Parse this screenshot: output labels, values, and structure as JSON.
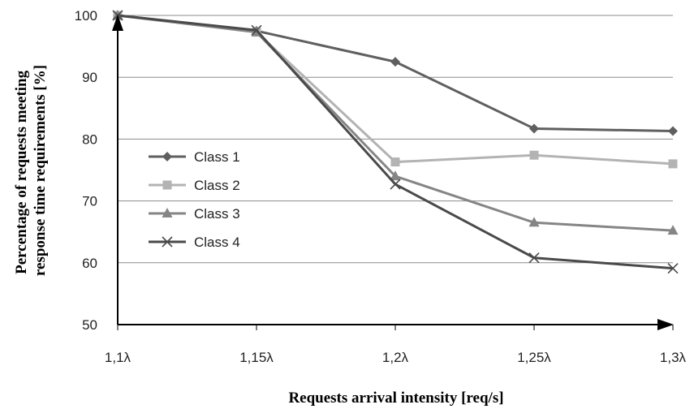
{
  "chart_data": {
    "type": "line",
    "categories": [
      "1,1λ",
      "1,15λ",
      "1,2λ",
      "1,25λ",
      "1,3λ"
    ],
    "series": [
      {
        "name": "Class 1",
        "values": [
          100,
          97.5,
          92.5,
          81.7,
          81.3
        ],
        "color": "#5f5f5f",
        "marker": "diamond"
      },
      {
        "name": "Class 2",
        "values": [
          100,
          97.3,
          76.3,
          77.4,
          76.0
        ],
        "color": "#b3b3b3",
        "marker": "square"
      },
      {
        "name": "Class 3",
        "values": [
          100,
          97.3,
          74.0,
          66.5,
          65.2
        ],
        "color": "#858585",
        "marker": "triangle"
      },
      {
        "name": "Class 4",
        "values": [
          100,
          97.6,
          72.7,
          60.8,
          59.1
        ],
        "color": "#4a4a4a",
        "marker": "x"
      }
    ],
    "xlabel": "Requests arrival intensity [req/s]",
    "ylabel_lines": [
      "Percentage of requests meeting",
      "response time requirements [%]"
    ],
    "ylim": [
      50,
      100
    ],
    "yticks": [
      50,
      60,
      70,
      80,
      90,
      100
    ],
    "grid": true,
    "legend_position": "center-left"
  }
}
